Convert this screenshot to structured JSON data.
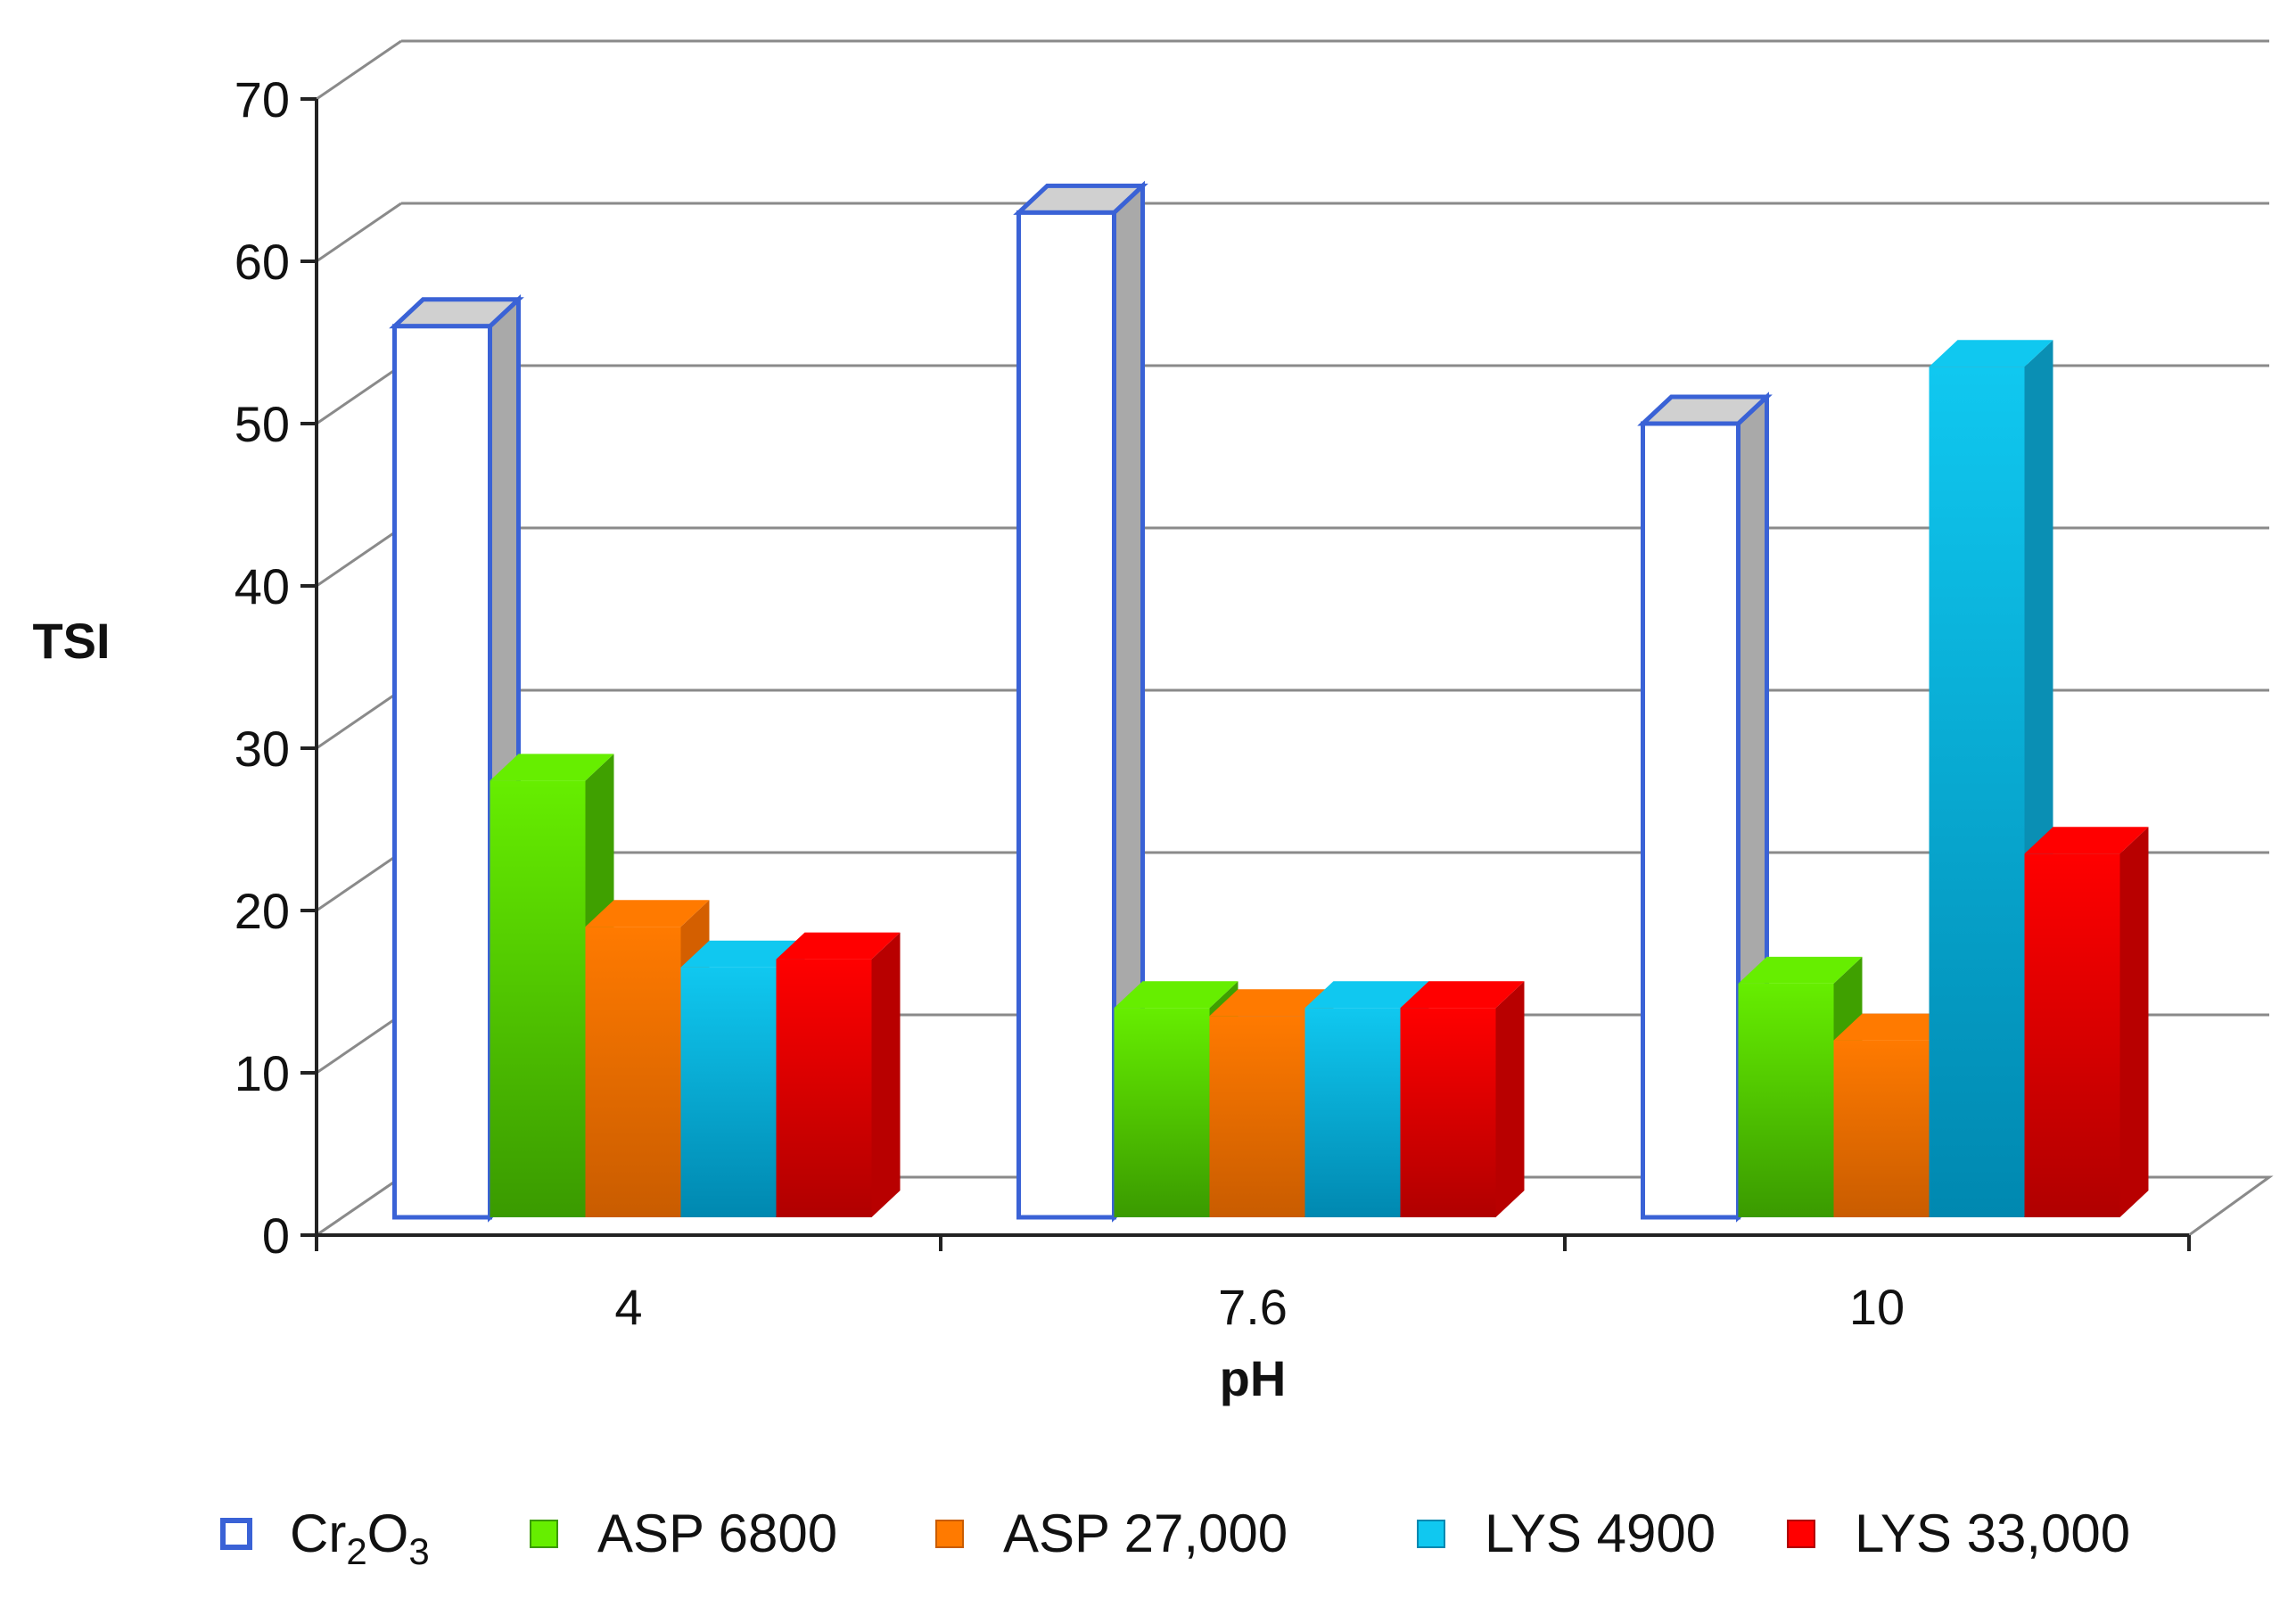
{
  "chart_data": {
    "type": "bar",
    "style": "3d-clustered-column",
    "title": "",
    "xlabel": "pH",
    "ylabel": "TSI",
    "categories": [
      "4",
      "7.6",
      "10"
    ],
    "ylim": [
      0,
      70
    ],
    "yticks": [
      0,
      10,
      20,
      30,
      40,
      50,
      60,
      70
    ],
    "grid": true,
    "legend_position": "bottom",
    "series": [
      {
        "name": "Cr2O3",
        "label_base": "Cr",
        "label_sub1": "2",
        "label_mid": "O",
        "label_sub2": "3",
        "values": [
          56,
          63,
          50
        ],
        "color": "#ffffff",
        "edge": "#3a62d6",
        "side": "#a9a9a9"
      },
      {
        "name": "ASP 6800",
        "label": "ASP 6800",
        "values": [
          28,
          14,
          15.5
        ],
        "color": "#66ee00",
        "edge": "#3a9a00",
        "side": "#3fa000"
      },
      {
        "name": "ASP 27,000",
        "label": "ASP 27,000",
        "values": [
          19,
          13.5,
          12
        ],
        "color": "#ff7a00",
        "edge": "#c95c00",
        "side": "#d45f00"
      },
      {
        "name": "LYS 4900",
        "label": "LYS 4900",
        "values": [
          16.5,
          14,
          53.5
        ],
        "color": "#10c8f0",
        "edge": "#0088b0",
        "side": "#0a8fb4"
      },
      {
        "name": "LYS 33,000",
        "label": "LYS 33,000",
        "values": [
          17,
          14,
          23.5
        ],
        "color": "#ff0000",
        "edge": "#b00000",
        "side": "#b80000"
      }
    ]
  }
}
